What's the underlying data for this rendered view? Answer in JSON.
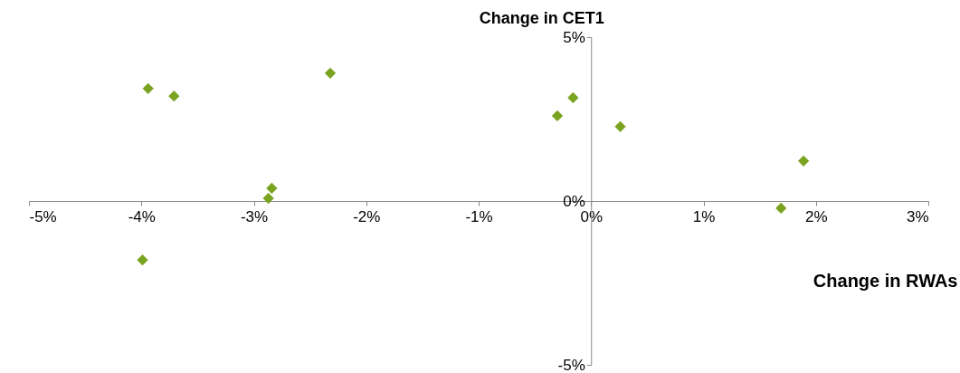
{
  "chart_data": {
    "type": "scatter",
    "xlabel": "Change in RWAs",
    "ylabel": "Change in CET1",
    "x": [
      -3.94,
      -3.71,
      -2.32,
      -2.84,
      -2.87,
      -3.99,
      -0.3,
      -0.16,
      0.26,
      1.89,
      1.69
    ],
    "series": [
      {
        "color": "#7aa320",
        "values": [
          3.43,
          3.2,
          3.9,
          0.39,
          0.08,
          -1.8,
          2.6,
          3.15,
          2.27,
          1.22,
          -0.22
        ]
      }
    ],
    "marker": "diamond",
    "grid": false,
    "xlim": [
      -5,
      3
    ],
    "xticks": [
      {
        "value": -5,
        "label": "-5%"
      },
      {
        "value": -4,
        "label": "-4%"
      },
      {
        "value": -3,
        "label": "-3%"
      },
      {
        "value": -2,
        "label": "-2%"
      },
      {
        "value": -1,
        "label": "-1%"
      },
      {
        "value": 0,
        "label": "0%"
      },
      {
        "value": 1,
        "label": "1%"
      },
      {
        "value": 2,
        "label": "2%"
      },
      {
        "value": 3,
        "label": "3%"
      }
    ],
    "ylim": [
      -5,
      5
    ],
    "yticks": [
      {
        "value": -5,
        "label": "-5%"
      },
      {
        "value": 0,
        "label": "0%"
      },
      {
        "value": 5,
        "label": "5%"
      }
    ]
  }
}
